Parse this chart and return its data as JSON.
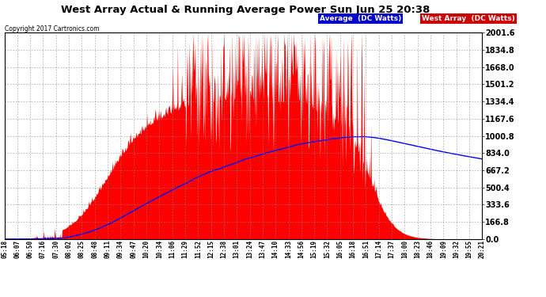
{
  "title": "West Array Actual & Running Average Power Sun Jun 25 20:38",
  "copyright": "Copyright 2017 Cartronics.com",
  "ylabel_right_ticks": [
    0.0,
    166.8,
    333.6,
    500.4,
    667.2,
    834.0,
    1000.8,
    1167.6,
    1334.4,
    1501.2,
    1668.0,
    1834.8,
    2001.6
  ],
  "ymax": 2001.6,
  "ymin": 0.0,
  "legend_average_label": "Average  (DC Watts)",
  "legend_west_label": "West Array  (DC Watts)",
  "legend_average_bg": "#0000cc",
  "legend_west_bg": "#cc0000",
  "background_color": "#ffffff",
  "plot_bg_color": "#ffffff",
  "grid_color": "#888888",
  "bar_color": "#ff0000",
  "line_color": "#0000ff",
  "x_labels": [
    "05:18",
    "06:07",
    "06:50",
    "07:16",
    "07:30",
    "08:02",
    "08:25",
    "08:48",
    "09:11",
    "09:34",
    "09:47",
    "10:20",
    "10:34",
    "11:06",
    "11:29",
    "11:52",
    "12:15",
    "12:38",
    "13:01",
    "13:24",
    "13:47",
    "14:10",
    "14:33",
    "14:56",
    "15:19",
    "15:32",
    "16:05",
    "16:18",
    "16:51",
    "17:14",
    "17:37",
    "18:00",
    "18:23",
    "18:46",
    "19:09",
    "19:32",
    "19:55",
    "20:21"
  ]
}
